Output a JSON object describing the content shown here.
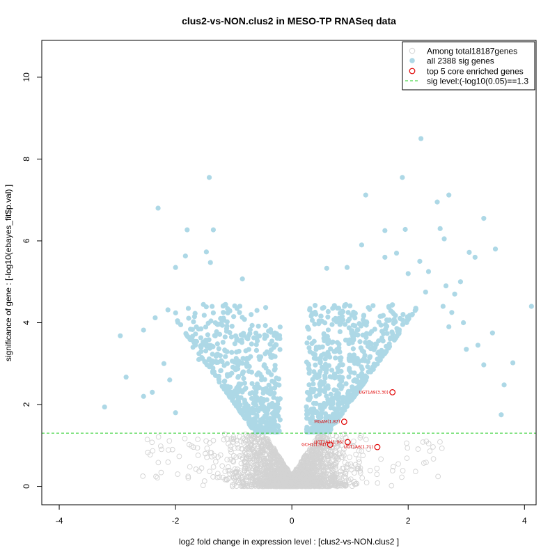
{
  "chart_data": {
    "type": "scatter",
    "title": "clus2-vs-NON.clus2 in MESO-TP RNASeq data",
    "xlabel": "log2 fold change in expression level : [clus2-vs-NON.clus2 ]",
    "ylabel": "significance of gene : [-log10(ebayes_fit$p.val) ]",
    "xlim": [
      -4.3,
      4.2
    ],
    "ylim": [
      -0.45,
      10.9
    ],
    "x_ticks": [
      -4,
      -2,
      0,
      2,
      4
    ],
    "y_ticks": [
      0,
      2,
      4,
      6,
      8,
      10
    ],
    "sig_level": 1.3,
    "legend": {
      "placement": "top-right",
      "entries": [
        {
          "label": "Among total18187genes",
          "marker": "open-circle",
          "color": "#d3d3d3"
        },
        {
          "label": "all 2388 sig genes",
          "marker": "filled-circle",
          "color": "#add8e6"
        },
        {
          "label": "top 5 core enriched genes",
          "marker": "open-circle",
          "color": "#e00000"
        },
        {
          "label": "sig level:(-log10(0.05)==1.3",
          "marker": "dashed-line",
          "color": "#22cc22"
        }
      ]
    },
    "colors": {
      "nonsig": "#d3d3d3",
      "sig": "#add8e6",
      "core": "#e00000",
      "siglevel": "#22cc22"
    },
    "sig_points": [
      [
        2.22,
        8.5
      ],
      [
        1.9,
        7.55
      ],
      [
        1.27,
        7.12
      ],
      [
        -1.42,
        7.55
      ],
      [
        2.7,
        7.12
      ],
      [
        -2.3,
        6.8
      ],
      [
        3.3,
        6.55
      ],
      [
        2.5,
        6.95
      ],
      [
        2.55,
        6.3
      ],
      [
        1.6,
        6.25
      ],
      [
        1.95,
        6.28
      ],
      [
        -1.8,
        6.27
      ],
      [
        -1.35,
        6.27
      ],
      [
        -1.47,
        5.73
      ],
      [
        -1.4,
        5.47
      ],
      [
        -1.83,
        5.63
      ],
      [
        -2.0,
        5.35
      ],
      [
        -0.85,
        5.07
      ],
      [
        3.5,
        5.8
      ],
      [
        3.05,
        5.72
      ],
      [
        3.15,
        5.6
      ],
      [
        2.62,
        6.05
      ],
      [
        2.2,
        5.5
      ],
      [
        2.35,
        5.25
      ],
      [
        1.8,
        5.7
      ],
      [
        1.2,
        5.9
      ],
      [
        0.6,
        5.33
      ],
      [
        0.95,
        5.35
      ],
      [
        1.6,
        5.6
      ],
      [
        2.0,
        5.2
      ],
      [
        2.9,
        5.0
      ],
      [
        2.65,
        4.9
      ],
      [
        2.8,
        4.7
      ],
      [
        2.3,
        4.75
      ],
      [
        4.12,
        4.4
      ],
      [
        3.45,
        3.75
      ],
      [
        3.2,
        3.45
      ],
      [
        3.3,
        2.97
      ],
      [
        3.8,
        3.02
      ],
      [
        3.65,
        2.48
      ],
      [
        3.6,
        1.75
      ],
      [
        3.0,
        3.35
      ],
      [
        2.75,
        4.25
      ],
      [
        2.6,
        4.4
      ],
      [
        2.7,
        3.9
      ],
      [
        2.95,
        4.0
      ],
      [
        -2.95,
        3.68
      ],
      [
        -3.22,
        1.94
      ],
      [
        -2.85,
        2.67
      ],
      [
        -2.55,
        3.82
      ],
      [
        -2.35,
        4.12
      ],
      [
        -2.2,
        3.0
      ],
      [
        -2.55,
        2.2
      ],
      [
        -2.1,
        2.6
      ],
      [
        -1.78,
        4.35
      ],
      [
        -1.7,
        3.4
      ],
      [
        -2.4,
        2.3
      ],
      [
        -2.0,
        1.8
      ],
      [
        -1.6,
        3.1
      ],
      [
        -0.45,
        4.37
      ],
      [
        -0.6,
        4.3
      ],
      [
        -0.9,
        4.25
      ],
      [
        -1.2,
        4.05
      ],
      [
        -1.0,
        4.15
      ],
      [
        -0.7,
        4.2
      ]
    ],
    "core_genes": [
      {
        "x": 1.73,
        "y": 2.3,
        "label": "UGT1A9(3.30)"
      },
      {
        "x": 0.9,
        "y": 1.58,
        "label": "MGAM(1.87)"
      },
      {
        "x": 0.96,
        "y": 1.08,
        "label": "UGT1A1(1.96)"
      },
      {
        "x": 0.66,
        "y": 1.02,
        "label": "GCH1(1.94)"
      },
      {
        "x": 1.47,
        "y": 0.96,
        "label": "UGT1A6(1.71)"
      }
    ]
  }
}
